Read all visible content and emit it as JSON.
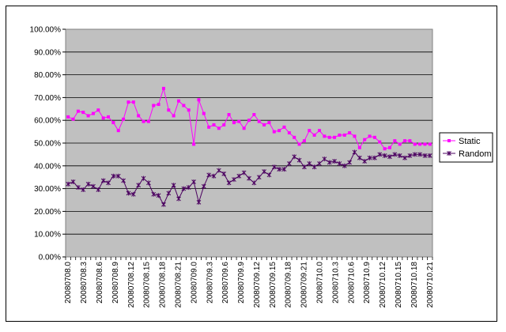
{
  "chart_data": {
    "type": "line",
    "title": "",
    "xlabel": "",
    "ylabel": "",
    "ylim": [
      0,
      100
    ],
    "y_tick_labels": [
      "0.00%",
      "10.00%",
      "20.00%",
      "30.00%",
      "40.00%",
      "50.00%",
      "60.00%",
      "70.00%",
      "80.00%",
      "90.00%",
      "100.00%"
    ],
    "x_tick_labels": [
      "20080708.0",
      "20080708.3",
      "20080708.6",
      "20080708.9",
      "20080708.12",
      "20080708.15",
      "20080708.18",
      "20080708.21",
      "20080709.0",
      "20080709.3",
      "20080709.6",
      "20080709.9",
      "20080709.12",
      "20080709.15",
      "20080709.18",
      "20080709.21",
      "20080710.0",
      "20080710.3",
      "20080710.6",
      "20080710.9",
      "20080710.12",
      "20080710.15",
      "20080710.18",
      "20080710.21"
    ],
    "grid": "horizontal",
    "legend_position": "right",
    "plot_background": "#c0c0c0",
    "series": [
      {
        "name": "Static",
        "color": "#ff00ff",
        "marker": "square",
        "values": [
          61.5,
          60.5,
          64.0,
          63.5,
          62.0,
          63.0,
          64.5,
          61.0,
          61.5,
          59.0,
          55.5,
          60.5,
          68.0,
          68.0,
          62.0,
          59.5,
          59.5,
          66.5,
          67.0,
          74.0,
          64.5,
          62.0,
          68.5,
          66.5,
          64.5,
          49.5,
          69.0,
          63.0,
          57.0,
          58.0,
          56.5,
          58.0,
          62.5,
          59.0,
          59.5,
          56.5,
          60.0,
          62.5,
          59.5,
          58.0,
          59.0,
          55.0,
          55.5,
          57.0,
          54.5,
          52.5,
          49.5,
          51.0,
          55.5,
          53.5,
          55.5,
          53.0,
          52.5,
          52.5,
          53.5,
          53.5,
          54.5,
          53.0,
          48.0,
          51.5,
          53.0,
          52.5,
          50.5,
          47.5,
          48.0,
          51.0,
          49.5,
          51.0,
          51.0,
          49.5,
          49.5,
          49.5,
          49.5
        ]
      },
      {
        "name": "Random",
        "color": "#4b0060",
        "marker": "star",
        "values": [
          32.0,
          33.0,
          30.5,
          29.5,
          32.0,
          31.0,
          29.5,
          33.5,
          32.5,
          35.5,
          35.5,
          33.5,
          28.0,
          27.5,
          31.5,
          34.5,
          32.5,
          27.5,
          27.0,
          23.0,
          28.0,
          31.5,
          25.5,
          30.0,
          30.5,
          33.0,
          24.0,
          31.0,
          36.0,
          35.5,
          38.0,
          36.5,
          32.5,
          34.0,
          35.5,
          37.0,
          34.5,
          32.5,
          35.0,
          37.5,
          36.0,
          39.5,
          38.5,
          38.5,
          41.0,
          44.0,
          42.5,
          39.5,
          41.0,
          39.5,
          41.0,
          43.0,
          41.5,
          42.0,
          41.0,
          40.0,
          41.5,
          46.0,
          43.5,
          42.0,
          43.5,
          43.5,
          45.0,
          44.5,
          44.0,
          45.0,
          44.5,
          43.5,
          44.5,
          45.0,
          45.0,
          44.5,
          44.5
        ]
      }
    ]
  }
}
